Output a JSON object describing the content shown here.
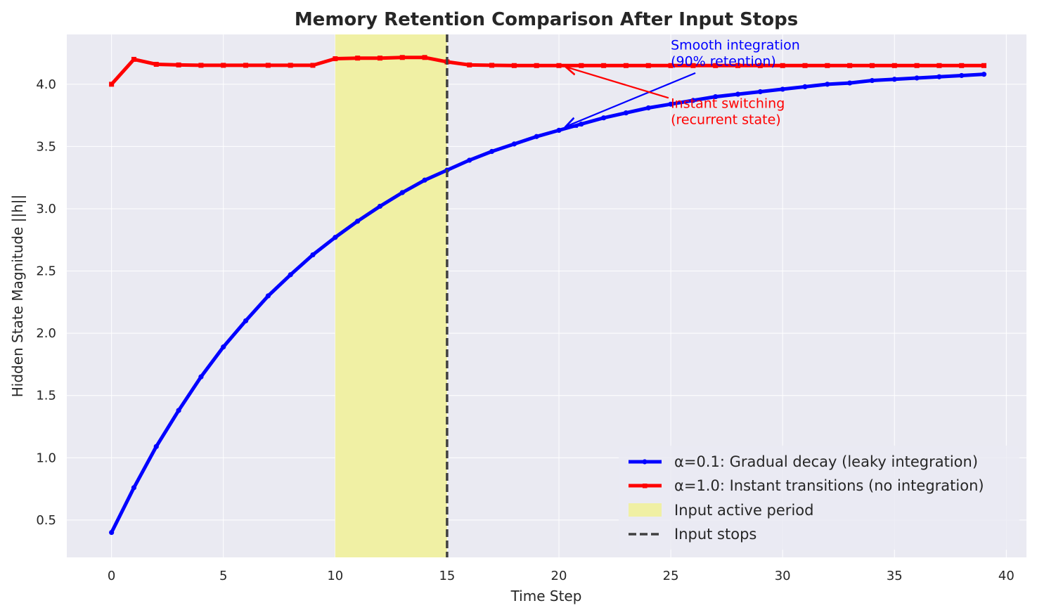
{
  "chart_data": {
    "type": "line",
    "title": "Memory Retention Comparison After Input Stops",
    "xlabel": "Time Step",
    "ylabel": "Hidden State Magnitude ||h||",
    "xlim": [
      -2,
      40.9
    ],
    "ylim": [
      0.2,
      4.4
    ],
    "xticks": [
      0,
      5,
      10,
      15,
      20,
      25,
      30,
      35,
      40
    ],
    "yticks": [
      0.5,
      1.0,
      1.5,
      2.0,
      2.5,
      3.0,
      3.5,
      4.0
    ],
    "ytick_labels": [
      "0.5",
      "1.0",
      "1.5",
      "2.0",
      "2.5",
      "3.0",
      "3.5",
      "4.0"
    ],
    "grid": true,
    "legend_position": "bottom-right",
    "series": [
      {
        "name": "α=0.1: Gradual decay (leaky integration)",
        "color": "#0000ff",
        "marker": "circle",
        "x": [
          0,
          1,
          2,
          3,
          4,
          5,
          6,
          7,
          8,
          9,
          10,
          11,
          12,
          13,
          14,
          15,
          16,
          17,
          18,
          19,
          20,
          21,
          22,
          23,
          24,
          25,
          26,
          27,
          28,
          29,
          30,
          31,
          32,
          33,
          34,
          35,
          36,
          37,
          38,
          39
        ],
        "y": [
          0.4,
          0.76,
          1.09,
          1.38,
          1.65,
          1.89,
          2.1,
          2.3,
          2.47,
          2.63,
          2.77,
          2.9,
          3.02,
          3.13,
          3.23,
          3.31,
          3.39,
          3.46,
          3.52,
          3.58,
          3.63,
          3.68,
          3.73,
          3.77,
          3.81,
          3.84,
          3.87,
          3.9,
          3.92,
          3.94,
          3.96,
          3.98,
          4.0,
          4.01,
          4.03,
          4.04,
          4.05,
          4.06,
          4.07,
          4.08
        ]
      },
      {
        "name": "α=1.0: Instant transitions (no integration)",
        "color": "#ff0000",
        "marker": "square",
        "x": [
          0,
          1,
          2,
          3,
          4,
          5,
          6,
          7,
          8,
          9,
          10,
          11,
          12,
          13,
          14,
          15,
          16,
          17,
          18,
          19,
          20,
          21,
          22,
          23,
          24,
          25,
          26,
          27,
          28,
          29,
          30,
          31,
          32,
          33,
          34,
          35,
          36,
          37,
          38,
          39
        ],
        "y": [
          4.0,
          4.2,
          4.16,
          4.155,
          4.152,
          4.152,
          4.152,
          4.152,
          4.152,
          4.152,
          4.205,
          4.21,
          4.21,
          4.215,
          4.215,
          4.18,
          4.155,
          4.152,
          4.15,
          4.15,
          4.15,
          4.15,
          4.15,
          4.15,
          4.15,
          4.15,
          4.15,
          4.15,
          4.15,
          4.15,
          4.15,
          4.15,
          4.15,
          4.15,
          4.15,
          4.15,
          4.15,
          4.15,
          4.15,
          4.15
        ]
      }
    ],
    "shaded_region": {
      "name": "Input active period",
      "x_start": 10,
      "x_end": 15,
      "color": "#f0f0a4"
    },
    "vline": {
      "name": "Input stops",
      "x": 15,
      "color": "#404040"
    },
    "annotations": [
      {
        "lines": [
          "Smooth integration",
          "(90% retention)"
        ],
        "text_x": 25,
        "text_y": 4.28,
        "arrow_from": [
          26.1,
          4.09
        ],
        "arrow_to": [
          20.3,
          3.66
        ],
        "color": "#0000ff"
      },
      {
        "lines": [
          "Instant switching",
          "(recurrent state)"
        ],
        "text_x": 25,
        "text_y": 3.81,
        "arrow_from": [
          24.9,
          3.89
        ],
        "arrow_to": [
          20.3,
          4.14
        ],
        "color": "#ff0000"
      }
    ]
  }
}
